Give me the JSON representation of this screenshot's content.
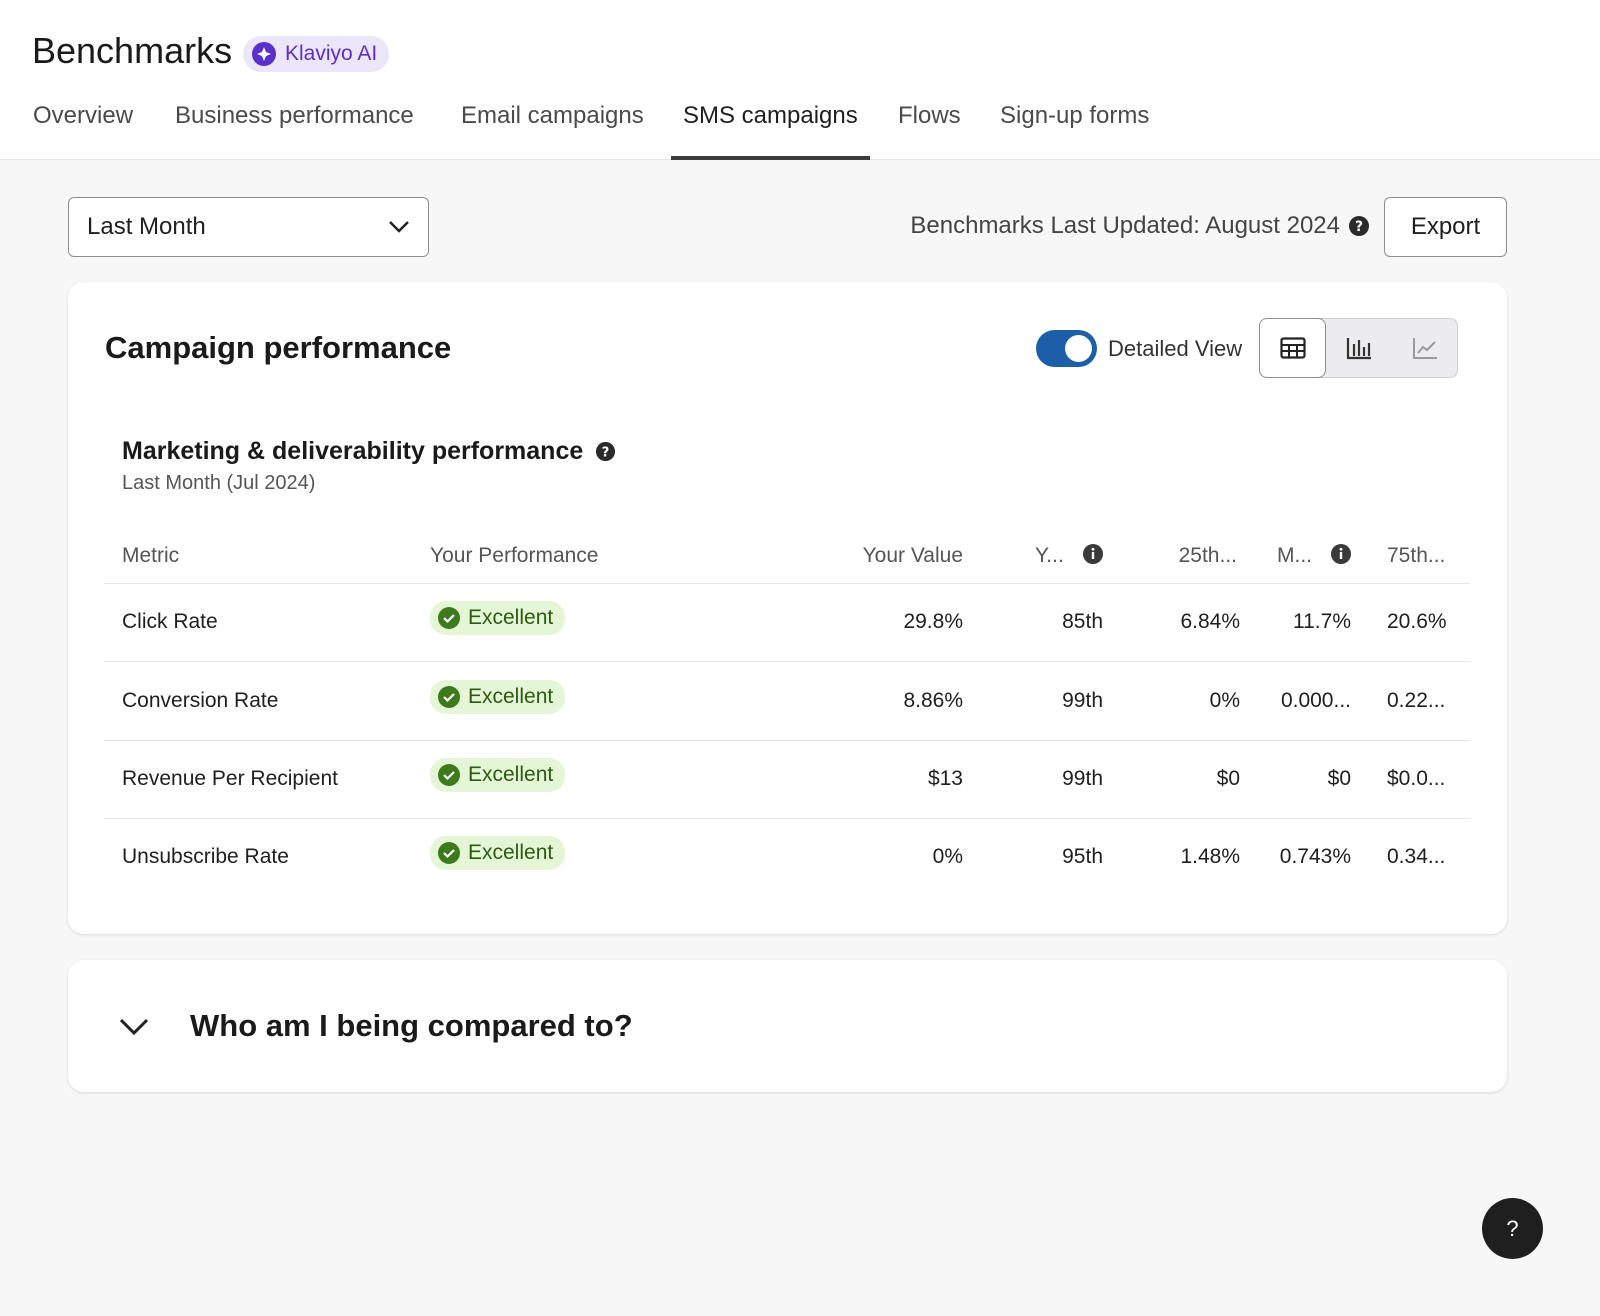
{
  "header": {
    "title": "Benchmarks",
    "badge": "Klaviyo AI"
  },
  "tabs": [
    "Overview",
    "Business performance",
    "Email campaigns",
    "SMS campaigns",
    "Flows",
    "Sign-up forms"
  ],
  "active_tab": 3,
  "toolbar": {
    "period": "Last Month",
    "updated": "Benchmarks Last Updated: August 2024",
    "export": "Export"
  },
  "card": {
    "title": "Campaign performance",
    "toggle_label": "Detailed View",
    "section_title": "Marketing & deliverability performance",
    "section_subtitle": "Last Month (Jul 2024)"
  },
  "table": {
    "columns": [
      "Metric",
      "Your Performance",
      "Your Value",
      "Y...",
      "25th...",
      "M...",
      "75th..."
    ],
    "rows": [
      [
        "Click Rate",
        "Excellent",
        "29.8%",
        "85th",
        "6.84%",
        "11.7%",
        "20.6%"
      ],
      [
        "Conversion Rate",
        "Excellent",
        "8.86%",
        "99th",
        "0%",
        "0.000...",
        "0.22..."
      ],
      [
        "Revenue Per Recipient",
        "Excellent",
        "$13",
        "99th",
        "$0",
        "$0",
        "$0.0..."
      ],
      [
        "Unsubscribe Rate",
        "Excellent",
        "0%",
        "95th",
        "1.48%",
        "0.743%",
        "0.34..."
      ]
    ]
  },
  "compare": {
    "title": "Who am I being compared to?"
  },
  "help": "?"
}
